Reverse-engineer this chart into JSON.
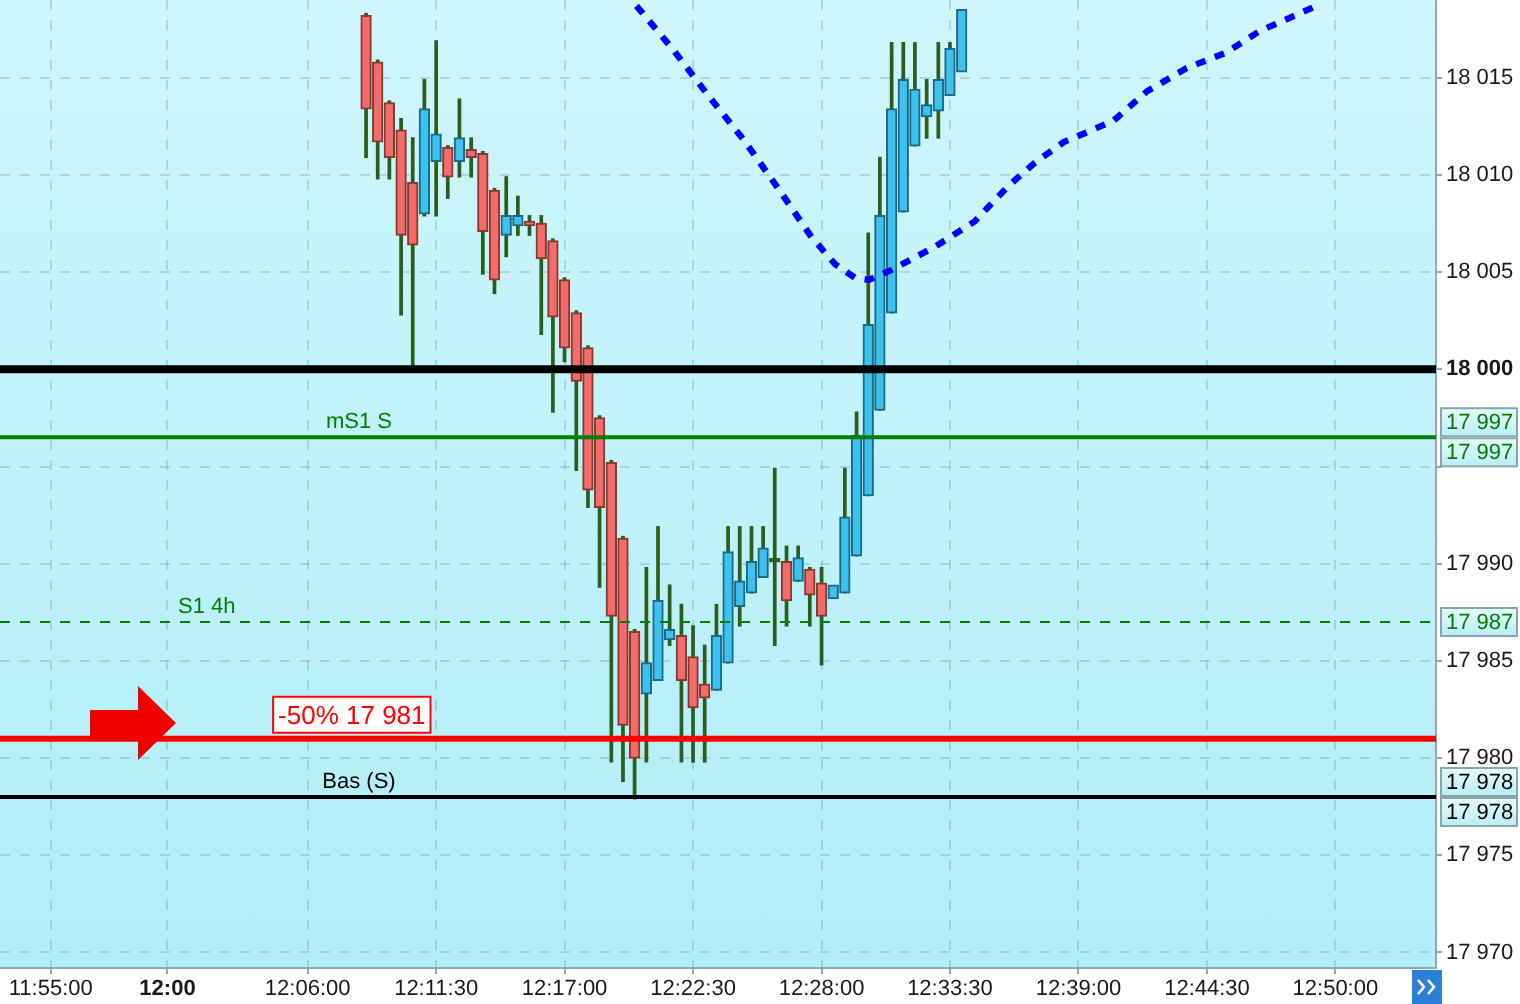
{
  "chart_data": {
    "type": "candlestick",
    "x": [
      12.1417,
      12.15,
      12.1583,
      12.1667,
      12.175,
      12.1833,
      12.1917,
      12.2,
      12.2083,
      12.2167,
      12.225,
      12.2333,
      12.2417,
      12.25,
      12.2583,
      12.2667,
      12.275,
      12.2833,
      12.2917,
      12.3,
      12.3083,
      12.3167,
      12.325,
      12.3333,
      12.3417,
      12.35,
      12.3583,
      12.3667,
      12.375,
      12.3833,
      12.3917,
      12.4,
      12.4083,
      12.4167,
      12.425,
      12.4333,
      12.4417,
      12.45,
      12.4583,
      12.4667,
      12.475,
      12.4833,
      12.4917,
      12.5,
      12.5083,
      12.5167,
      12.525,
      12.5333,
      12.5417,
      12.55,
      12.5583,
      12.5667
    ],
    "ohlc": [
      [
        18018.2,
        18018.3,
        18010.9,
        18013.4
      ],
      [
        18015.8,
        18015.9,
        18009.8,
        18011.7
      ],
      [
        18013.7,
        18013.8,
        18009.8,
        18010.9
      ],
      [
        18012.3,
        18012.9,
        18002.8,
        18006.9
      ],
      [
        18009.6,
        18011.9,
        18000.2,
        18006.4
      ],
      [
        18008.0,
        18014.9,
        18007.9,
        18013.4
      ],
      [
        18010.7,
        18016.9,
        18007.9,
        18012.1
      ],
      [
        18011.4,
        18011.5,
        18008.8,
        18009.9
      ],
      [
        18010.7,
        18013.9,
        18009.9,
        18011.9
      ],
      [
        18011.3,
        18011.9,
        18009.9,
        18010.9
      ],
      [
        18011.1,
        18011.2,
        18004.9,
        18007.1
      ],
      [
        18009.2,
        18009.3,
        18003.9,
        18004.6
      ],
      [
        18006.9,
        18009.9,
        18005.8,
        18007.9
      ],
      [
        18007.4,
        18008.9,
        18006.9,
        18007.9
      ],
      [
        18007.6,
        18007.9,
        18006.9,
        18007.4
      ],
      [
        18007.5,
        18007.9,
        18001.8,
        18005.7
      ],
      [
        18006.6,
        18006.7,
        17997.8,
        18002.7
      ],
      [
        18004.6,
        18004.7,
        18000.4,
        18001.1
      ],
      [
        18002.9,
        18003.0,
        17994.8,
        17999.4
      ],
      [
        18001.1,
        18001.2,
        17992.9,
        17993.8
      ],
      [
        17997.5,
        17997.6,
        17988.8,
        17992.9
      ],
      [
        17995.2,
        17995.3,
        17979.8,
        17987.3
      ],
      [
        17991.3,
        17991.4,
        17978.8,
        17981.7
      ],
      [
        17986.5,
        17986.6,
        17977.9,
        17980.0
      ],
      [
        17983.3,
        17989.8,
        17979.8,
        17984.9
      ],
      [
        17984.0,
        17991.9,
        17984.0,
        17988.1
      ],
      [
        17986.1,
        17988.9,
        17985.8,
        17986.6
      ],
      [
        17986.3,
        17987.9,
        17979.8,
        17984.0
      ],
      [
        17985.2,
        17986.8,
        17979.8,
        17982.6
      ],
      [
        17983.8,
        17985.8,
        17979.8,
        17983.1
      ],
      [
        17983.5,
        17987.9,
        17983.5,
        17986.3
      ],
      [
        17984.9,
        17991.9,
        17984.9,
        17990.6
      ],
      [
        17987.8,
        17991.9,
        17986.8,
        17989.1
      ],
      [
        17988.5,
        17991.9,
        17988.5,
        17990.1
      ],
      [
        17989.3,
        17991.9,
        17989.3,
        17990.8
      ],
      [
        17990.1,
        17994.9,
        17985.8,
        17990.1
      ],
      [
        17990.1,
        17990.9,
        17986.8,
        17988.1
      ],
      [
        17989.1,
        17990.9,
        17989.1,
        17990.3
      ],
      [
        17989.7,
        17989.8,
        17986.8,
        17988.4
      ],
      [
        17989.0,
        17989.8,
        17984.8,
        17987.3
      ],
      [
        17988.2,
        17988.9,
        17988.2,
        17988.9
      ],
      [
        17988.5,
        17994.9,
        17988.5,
        17992.4
      ],
      [
        17990.4,
        17997.8,
        17990.4,
        17996.6
      ],
      [
        17993.5,
        18007.0,
        17993.5,
        18002.3
      ],
      [
        17997.9,
        18010.9,
        17997.9,
        18007.9
      ],
      [
        18002.9,
        18016.8,
        18002.9,
        18013.4
      ],
      [
        18008.1,
        18016.8,
        18008.1,
        18014.9
      ],
      [
        18011.5,
        18016.8,
        18011.5,
        18014.4
      ],
      [
        18013.0,
        18014.9,
        18011.9,
        18013.6
      ],
      [
        18013.3,
        18016.8,
        18011.9,
        18014.9
      ],
      [
        18014.1,
        18016.8,
        18014.1,
        18016.5
      ],
      [
        18015.3,
        18018.5,
        18015.3,
        18018.5
      ]
    ],
    "series": [
      {
        "type": "line",
        "color": "#0000ff",
        "line_style": "dashed",
        "x": [
          12.3346,
          12.3602,
          12.3857,
          12.4112,
          12.4368,
          12.4595,
          12.4765,
          12.4907,
          12.5006,
          12.5162,
          12.5475,
          12.5758,
          12.5995,
          12.6184,
          12.6397,
          12.6563,
          12.6752,
          12.6989,
          12.7273,
          12.7556,
          12.7792,
          12.8076,
          12.8228
        ],
        "values": [
          18018.7,
          18016.5,
          18014.1,
          18011.8,
          18009.2,
          18006.8,
          18005.4,
          18004.7,
          18004.6,
          18005.1,
          18006.3,
          18007.6,
          18009.4,
          18010.6,
          18011.7,
          18012.2,
          18012.8,
          18014.3,
          18015.5,
          18016.3,
          18017.4,
          18018.3,
          18018.8
        ]
      }
    ],
    "xlim": [
      11.8805,
      12.9051
    ],
    "xticks": [
      {
        "value": 11.9167,
        "label": "11:55:00"
      },
      {
        "value": 12,
        "label": "12:00"
      },
      {
        "value": 12.1,
        "label": "12:06:00"
      },
      {
        "value": 12.1917,
        "label": "12:11:30"
      },
      {
        "value": 12.2833,
        "label": "12:17:00"
      },
      {
        "value": 12.375,
        "label": "12:22:30"
      },
      {
        "value": 12.4667,
        "label": "12:28:00"
      },
      {
        "value": 12.5583,
        "label": "12:33:30"
      },
      {
        "value": 12.65,
        "label": "12:39:00"
      },
      {
        "value": 12.7417,
        "label": "12:44:30"
      },
      {
        "value": 12.8333,
        "label": "12:50:00"
      }
    ],
    "ylim": [
      17969.2,
      18019.0
    ],
    "yticks": [
      {
        "value": 17970,
        "label": "17 970"
      },
      {
        "value": 17975,
        "label": "17 975"
      },
      {
        "value": 17980,
        "label": "17 980"
      },
      {
        "value": 17985,
        "label": "17 985"
      },
      {
        "value": 17990,
        "label": "17 990"
      },
      {
        "value": 17995,
        "label": null
      },
      {
        "value": 18000,
        "label": "18 000"
      },
      {
        "value": 18005,
        "label": "18 005"
      },
      {
        "value": 18010,
        "label": "18 010"
      },
      {
        "value": 18015,
        "label": "18 015"
      }
    ],
    "grid": true,
    "ref_lines": [
      {
        "axis": "y",
        "value": 18000,
        "color": "#000000"
      },
      {
        "axis": "y",
        "value": 17996.5,
        "label": "mS1 S",
        "color": "#008000"
      },
      {
        "axis": "y",
        "value": 17987,
        "label": "S1 4h",
        "color": "#008000",
        "line_style": "dashed"
      },
      {
        "axis": "y",
        "value": 17981,
        "label": "-50% 17 981",
        "color": "#ff0000"
      },
      {
        "axis": "y",
        "value": 17978,
        "label": "Bas (S)",
        "color": "#000000"
      }
    ],
    "annotations": [
      "17 997",
      "17 997",
      "17 987",
      "17 978",
      "17 978"
    ]
  }
}
